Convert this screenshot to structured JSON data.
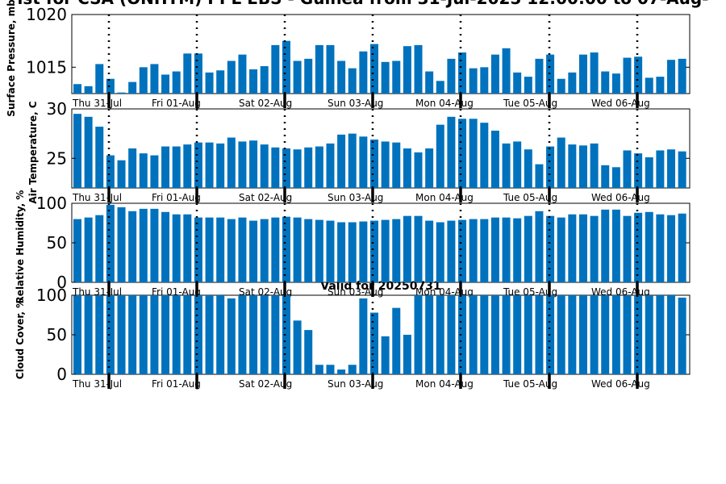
{
  "title": "ist for CSA (ONHTM) PPL EBS - Guinea from 31-Jul-2025 12:00:00 to 07-Aug-",
  "valid_label": "Valid for 20250731",
  "colors": {
    "bar": "#0072BD",
    "axis": "#000000",
    "background": "#ffffff"
  },
  "chart_data": [
    {
      "type": "bar",
      "ylabel": "Surface Pressure, mb",
      "ylim": [
        1012.5,
        1020
      ],
      "yticks": [
        1015,
        1020
      ],
      "day_labels": [
        "Thu 31-Jul",
        "Fri 01-Aug",
        "Sat 02-Aug",
        "Sun 03-Aug",
        "Mon 04-Aug",
        "Tue 05-Aug",
        "Wed 06-Aug"
      ],
      "values": [
        1013.4,
        1013.2,
        1015.3,
        1013.9,
        1012.6,
        1013.6,
        1015.0,
        1015.3,
        1014.3,
        1014.6,
        1016.3,
        1016.3,
        1014.5,
        1014.7,
        1015.6,
        1016.2,
        1014.8,
        1015.1,
        1017.1,
        1017.5,
        1015.6,
        1015.8,
        1017.1,
        1017.1,
        1015.6,
        1014.9,
        1016.5,
        1017.2,
        1015.5,
        1015.6,
        1017.0,
        1017.1,
        1014.6,
        1013.7,
        1015.8,
        1016.4,
        1014.9,
        1015.0,
        1016.2,
        1016.8,
        1014.5,
        1014.1,
        1015.8,
        1016.2,
        1013.9,
        1014.5,
        1016.2,
        1016.4,
        1014.6,
        1014.4,
        1015.9,
        1016.0,
        1014.0,
        1014.1,
        1015.7,
        1015.8
      ]
    },
    {
      "type": "bar",
      "ylabel": "Air Temperature, C",
      "ylim": [
        22,
        30
      ],
      "yticks": [
        25,
        30
      ],
      "day_labels": [
        "Thu 31-Jul",
        "Fri 01-Aug",
        "Sat 02-Aug",
        "Sun 03-Aug",
        "Mon 04-Aug",
        "Tue 05-Aug",
        "Wed 06-Aug"
      ],
      "values": [
        29.5,
        29.2,
        28.2,
        25.3,
        24.8,
        26.0,
        25.5,
        25.3,
        26.2,
        26.2,
        26.4,
        26.6,
        26.6,
        26.5,
        27.1,
        26.7,
        26.8,
        26.4,
        26.1,
        26.0,
        25.9,
        26.1,
        26.2,
        26.5,
        27.4,
        27.5,
        27.2,
        26.9,
        26.7,
        26.6,
        26.0,
        25.6,
        26.0,
        28.4,
        29.2,
        29.0,
        29.0,
        28.6,
        27.8,
        26.5,
        26.7,
        25.9,
        24.4,
        26.2,
        27.1,
        26.4,
        26.3,
        26.5,
        24.3,
        24.1,
        25.8,
        25.5,
        25.1,
        25.8,
        25.9,
        25.7,
        25.7,
        26.4
      ]
    },
    {
      "type": "bar",
      "ylabel": "Relative Humidity, %",
      "ylim": [
        0,
        100
      ],
      "yticks": [
        0,
        50,
        100
      ],
      "day_labels": [
        "Thu 31-Jul",
        "Fri 01-Aug",
        "Sat 02-Aug",
        "Sun 03-Aug",
        "Mon 04-Aug",
        "Tue 05-Aug",
        "Wed 06-Aug"
      ],
      "values": [
        80,
        82,
        85,
        98,
        95,
        90,
        93,
        93,
        89,
        86,
        86,
        82,
        82,
        82,
        80,
        82,
        78,
        80,
        82,
        83,
        82,
        80,
        79,
        78,
        76,
        76,
        77,
        78,
        79,
        80,
        84,
        84,
        78,
        76,
        78,
        79,
        80,
        80,
        82,
        82,
        81,
        84,
        90,
        84,
        82,
        86,
        86,
        84,
        92,
        92,
        84,
        88,
        89,
        86,
        85,
        87,
        87,
        85
      ]
    },
    {
      "type": "bar",
      "ylabel": "Cloud Cover, %",
      "ylim": [
        0,
        100
      ],
      "yticks": [
        0,
        50,
        100
      ],
      "day_labels": [
        "Thu 31-Jul",
        "Fri 01-Aug",
        "Sat 02-Aug",
        "Sun 03-Aug",
        "Mon 04-Aug",
        "Tue 05-Aug",
        "Wed 06-Aug"
      ],
      "values": [
        100,
        100,
        100,
        100,
        100,
        100,
        100,
        100,
        100,
        100,
        100,
        100,
        100,
        100,
        96,
        100,
        100,
        100,
        100,
        100,
        68,
        56,
        12,
        12,
        6,
        12,
        96,
        78,
        48,
        84,
        50,
        100,
        100,
        100,
        100,
        100,
        100,
        100,
        100,
        100,
        100,
        100,
        100,
        100,
        100,
        100,
        100,
        100,
        100,
        100,
        100,
        100,
        100,
        100,
        100,
        97,
        97,
        100
      ]
    }
  ]
}
